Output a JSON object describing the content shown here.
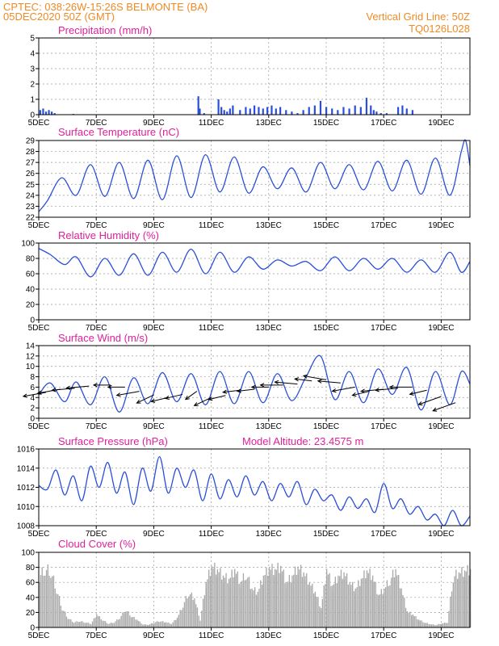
{
  "header": {
    "line1_left": "CPTEC:   038:26W-15:26S   BELMONTE (BA)",
    "line2_left": "05DEC2020 50Z (GMT)",
    "line2_right": "Vertical Grid Line: 50Z",
    "line3_right": "TQ0126L028"
  },
  "colors": {
    "header_text": "#f08a24",
    "panel_title": "#e0209a",
    "series_line": "#2a4fd8",
    "precip_bars": "#2a4fd8",
    "cloud_fill": "#a9a9a9"
  },
  "x_axis": {
    "tick_labels": [
      "5DEC",
      "7DEC",
      "9DEC",
      "11DEC",
      "13DEC",
      "15DEC",
      "17DEC",
      "19DEC"
    ],
    "tick_days": [
      5,
      7,
      9,
      11,
      13,
      15,
      17,
      19
    ],
    "range_days": [
      5,
      20
    ]
  },
  "chart_data": [
    {
      "id": "precipitation",
      "type": "bar",
      "title": "Precipitation (mm/h)",
      "ylim": [
        0,
        5
      ],
      "yticks": [
        0,
        1,
        2,
        3,
        4,
        5
      ],
      "grid": true,
      "x": [
        5.05,
        5.15,
        5.25,
        5.35,
        5.45,
        5.55,
        6.2,
        10.55,
        10.6,
        10.75,
        11.25,
        11.35,
        11.45,
        11.55,
        11.65,
        11.75,
        12.0,
        12.2,
        12.35,
        12.5,
        12.65,
        12.8,
        12.95,
        13.1,
        13.25,
        13.4,
        13.6,
        13.8,
        14.0,
        14.2,
        14.4,
        14.6,
        14.8,
        15.0,
        15.2,
        15.4,
        15.6,
        15.8,
        16.0,
        16.2,
        16.4,
        16.55,
        16.65,
        16.75,
        16.9,
        17.1,
        17.5,
        17.65,
        17.8,
        18.0
      ],
      "values": [
        0.3,
        0.4,
        0.2,
        0.3,
        0.2,
        0.1,
        0.05,
        1.2,
        0.4,
        0.1,
        1.0,
        0.5,
        0.3,
        0.2,
        0.4,
        0.6,
        0.3,
        0.5,
        0.4,
        0.6,
        0.5,
        0.4,
        0.5,
        0.6,
        0.4,
        0.5,
        0.3,
        0.2,
        0.1,
        0.3,
        0.5,
        0.6,
        0.9,
        0.5,
        0.4,
        0.3,
        0.5,
        0.4,
        0.6,
        0.5,
        1.1,
        0.6,
        0.3,
        0.2,
        0.1,
        0.1,
        0.5,
        0.6,
        0.4,
        0.3
      ]
    },
    {
      "id": "temperature",
      "type": "line",
      "title": "Surface Temperature (nC)",
      "ylim": [
        22,
        29
      ],
      "yticks": [
        22,
        23,
        24,
        25,
        26,
        27,
        28,
        29
      ],
      "grid": true,
      "x": [
        5.0,
        5.3,
        5.8,
        6.3,
        6.8,
        7.3,
        7.8,
        8.3,
        8.8,
        9.3,
        9.8,
        10.3,
        10.8,
        11.3,
        11.8,
        12.3,
        12.8,
        13.3,
        13.8,
        14.3,
        14.8,
        15.3,
        15.8,
        16.3,
        16.8,
        17.3,
        17.8,
        18.3,
        18.8,
        19.3,
        19.7,
        19.85,
        20.0
      ],
      "values": [
        22.5,
        23.5,
        25.6,
        24.0,
        26.8,
        23.9,
        27.0,
        23.7,
        27.2,
        23.6,
        27.6,
        23.8,
        27.7,
        24.3,
        27.5,
        24.2,
        26.6,
        24.6,
        26.5,
        24.3,
        27.0,
        24.6,
        26.8,
        24.5,
        27.1,
        24.4,
        27.2,
        24.1,
        27.4,
        24.0,
        28.0,
        29.0,
        26.7
      ]
    },
    {
      "id": "humidity",
      "type": "line",
      "title": "Relative Humidity (%)",
      "ylim": [
        0,
        100
      ],
      "yticks": [
        0,
        20,
        40,
        60,
        80,
        100
      ],
      "grid": true,
      "x": [
        5.0,
        5.4,
        5.9,
        6.3,
        6.8,
        7.3,
        7.8,
        8.3,
        8.8,
        9.3,
        9.8,
        10.3,
        10.8,
        11.3,
        11.8,
        12.3,
        12.8,
        13.3,
        13.8,
        14.3,
        14.8,
        15.3,
        15.8,
        16.3,
        16.8,
        17.3,
        17.8,
        18.3,
        18.8,
        19.3,
        19.7,
        20.0
      ],
      "values": [
        93,
        85,
        72,
        82,
        56,
        80,
        58,
        86,
        58,
        88,
        62,
        92,
        60,
        88,
        62,
        82,
        66,
        78,
        70,
        76,
        64,
        82,
        64,
        80,
        66,
        80,
        62,
        78,
        62,
        88,
        62,
        76
      ]
    },
    {
      "id": "wind",
      "type": "line",
      "title": "Surface Wind (m/s)",
      "ylim": [
        0,
        14
      ],
      "yticks": [
        0,
        2,
        4,
        6,
        8,
        10,
        12,
        14
      ],
      "grid": true,
      "x": [
        5.0,
        5.4,
        5.9,
        6.3,
        6.8,
        7.3,
        7.8,
        8.3,
        8.8,
        9.3,
        9.8,
        10.3,
        10.8,
        11.3,
        11.8,
        12.3,
        12.8,
        13.3,
        13.8,
        14.3,
        14.8,
        15.3,
        15.8,
        16.3,
        16.8,
        17.3,
        17.8,
        18.3,
        18.8,
        19.3,
        19.7,
        20.0
      ],
      "values": [
        4.5,
        6.8,
        3.2,
        7.0,
        2.6,
        8.0,
        1.2,
        7.8,
        2.8,
        8.8,
        3.2,
        8.6,
        2.6,
        9.0,
        2.8,
        9.0,
        3.0,
        8.6,
        3.4,
        8.0,
        12.0,
        3.6,
        9.0,
        3.0,
        9.5,
        4.6,
        9.8,
        1.6,
        9.0,
        2.6,
        9.0,
        6.6
      ],
      "wind_vectors": {
        "x": [
          5.25,
          5.75,
          6.25,
          6.75,
          7.5,
          8.0,
          8.5,
          9.0,
          9.5,
          10.0,
          10.5,
          11.0,
          11.5,
          12.0,
          12.5,
          13.0,
          13.5,
          14.0,
          14.5,
          15.0,
          15.5,
          16.0,
          16.5,
          17.0,
          17.5,
          18.0,
          18.5,
          19.0,
          19.5
        ],
        "y": [
          5.0,
          5.6,
          5.8,
          6.2,
          6.4,
          6.0,
          5.2,
          4.5,
          4.0,
          4.6,
          5.2,
          4.0,
          4.4,
          5.4,
          5.6,
          6.0,
          6.4,
          6.6,
          7.2,
          7.4,
          6.8,
          6.0,
          5.2,
          5.6,
          5.8,
          6.0,
          5.4,
          4.2,
          3.0
        ],
        "u": [
          -4,
          -4,
          -4,
          -4,
          -3,
          -3,
          -4,
          -3,
          -3,
          -3,
          -2,
          -3,
          -3,
          -3,
          -3,
          -3,
          -4,
          -4,
          -3,
          -4,
          -4,
          -4,
          -3,
          -4,
          -4,
          -4,
          -3,
          -4,
          -4
        ],
        "v": [
          -1,
          -1,
          -0.5,
          -0.5,
          0,
          0,
          -1,
          -2,
          -1,
          -1,
          -2,
          -2,
          -1,
          -0.5,
          -0.5,
          0,
          0,
          0.5,
          0.5,
          1,
          0.5,
          -1,
          -1,
          -0.5,
          -0.5,
          0,
          -1,
          -2,
          -2
        ]
      }
    },
    {
      "id": "pressure",
      "type": "line",
      "title": "Surface Pressure (hPa)",
      "annotation": "Model Altitude: 23.4575 m",
      "ylim": [
        1008,
        1016
      ],
      "yticks": [
        1008,
        1010,
        1012,
        1014,
        1016
      ],
      "grid": true,
      "x": [
        5.0,
        5.3,
        5.6,
        5.9,
        6.2,
        6.5,
        6.8,
        7.1,
        7.4,
        7.7,
        8.0,
        8.3,
        8.6,
        8.9,
        9.2,
        9.5,
        9.8,
        10.1,
        10.4,
        10.7,
        11.0,
        11.3,
        11.6,
        11.9,
        12.2,
        12.5,
        12.8,
        13.1,
        13.4,
        13.7,
        14.0,
        14.3,
        14.6,
        14.9,
        15.2,
        15.5,
        15.8,
        16.1,
        16.4,
        16.7,
        17.0,
        17.3,
        17.6,
        17.9,
        18.2,
        18.5,
        18.8,
        19.1,
        19.4,
        19.7,
        20.0
      ],
      "values": [
        1012.2,
        1011.8,
        1013.8,
        1011.2,
        1013.2,
        1010.6,
        1014.2,
        1012.0,
        1014.6,
        1011.4,
        1013.6,
        1010.2,
        1014.0,
        1011.6,
        1015.2,
        1011.4,
        1014.0,
        1012.0,
        1013.8,
        1010.6,
        1013.4,
        1010.8,
        1012.8,
        1011.0,
        1013.2,
        1011.2,
        1012.6,
        1010.6,
        1012.4,
        1011.0,
        1012.6,
        1010.2,
        1011.8,
        1010.6,
        1011.2,
        1009.6,
        1011.0,
        1009.8,
        1010.8,
        1009.4,
        1012.4,
        1009.8,
        1010.8,
        1009.2,
        1010.0,
        1008.6,
        1009.2,
        1007.6,
        1009.6,
        1006.8,
        1009.0
      ]
    },
    {
      "id": "cloud",
      "type": "area",
      "title": "Cloud Cover (%)",
      "ylim": [
        0,
        100
      ],
      "yticks": [
        0,
        20,
        40,
        60,
        80,
        100
      ],
      "grid": true,
      "x": [
        5.0,
        5.2,
        5.4,
        5.6,
        5.8,
        6.0,
        6.2,
        6.4,
        6.6,
        6.8,
        7.0,
        7.2,
        7.4,
        7.6,
        7.8,
        8.0,
        8.2,
        8.4,
        8.6,
        8.8,
        9.0,
        9.2,
        9.4,
        9.6,
        9.8,
        10.0,
        10.2,
        10.4,
        10.6,
        10.8,
        11.0,
        11.2,
        11.4,
        11.6,
        11.8,
        12.0,
        12.2,
        12.4,
        12.6,
        12.8,
        13.0,
        13.2,
        13.4,
        13.6,
        13.8,
        14.0,
        14.2,
        14.4,
        14.6,
        14.8,
        15.0,
        15.2,
        15.4,
        15.6,
        15.8,
        16.0,
        16.2,
        16.4,
        16.6,
        16.8,
        17.0,
        17.2,
        17.4,
        17.6,
        17.8,
        18.0,
        18.2,
        18.4,
        18.6,
        18.8,
        19.0,
        19.2,
        19.4,
        19.6,
        19.8,
        20.0
      ],
      "values": [
        80,
        92,
        88,
        60,
        30,
        15,
        8,
        10,
        8,
        6,
        20,
        12,
        6,
        8,
        15,
        28,
        18,
        12,
        5,
        4,
        8,
        10,
        8,
        6,
        15,
        35,
        55,
        45,
        12,
        70,
        95,
        90,
        80,
        75,
        90,
        70,
        85,
        60,
        55,
        80,
        92,
        90,
        95,
        70,
        80,
        94,
        85,
        70,
        55,
        30,
        90,
        65,
        80,
        85,
        70,
        60,
        75,
        88,
        80,
        50,
        60,
        75,
        90,
        60,
        25,
        20,
        12,
        8,
        5,
        4,
        6,
        8,
        80,
        85,
        88,
        90
      ]
    }
  ]
}
